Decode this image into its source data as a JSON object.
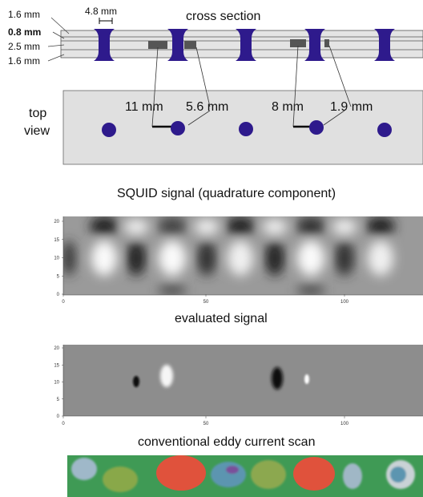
{
  "cross_section": {
    "title": "cross section",
    "rivet_width": "4.8 mm",
    "layers": [
      "1.6 mm",
      "0.8 mm",
      "2.5 mm",
      "1.6 mm"
    ]
  },
  "top_view": {
    "label": [
      "top",
      "view"
    ],
    "crack_labels": [
      "11 mm",
      "5.6 mm",
      "8 mm",
      "1.9 mm"
    ]
  },
  "squid_plot": {
    "title": "SQUID signal (quadrature component)",
    "yticks": [
      20,
      15,
      10,
      5,
      0
    ],
    "xticks": [
      0,
      50,
      100
    ]
  },
  "evaluated_plot": {
    "title": "evaluated signal",
    "yticks": [
      20,
      15,
      10,
      5,
      0
    ],
    "xticks": [
      0,
      50,
      100
    ]
  },
  "eddy_current": {
    "title": "conventional eddy current scan"
  }
}
